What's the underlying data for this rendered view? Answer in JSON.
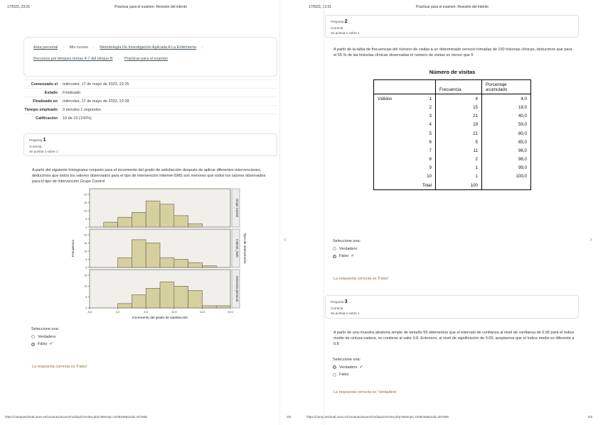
{
  "colors": {
    "check": "#2e9e44",
    "feedback": "#8a6d3b",
    "bar_fill": "#d6d0a0",
    "bar_stroke": "#5f5c45",
    "panel_bg": "#f0efea",
    "strip_bg": "#ececec"
  },
  "icons": {
    "separator": "›",
    "check": "✔",
    "pager_prev": "‹",
    "pager_next": "›"
  },
  "left": {
    "header": {
      "datetime": "17/5/23, 23:31",
      "title": "Practicar para el examen: Revisión del intento"
    },
    "breadcrumb": [
      {
        "label": "Área personal",
        "link": true
      },
      {
        "label": "Mis cursos",
        "link": false
      },
      {
        "label": "Metodología De Investigación Aplicada A La Enfermería",
        "link": true
      },
      {
        "label": "Recursos por bloques temas 4-7 del bloque B",
        "link": true
      },
      {
        "label": "Practicar para el examen",
        "link": true
      }
    ],
    "summary_rows": [
      {
        "label": "Comenzado el",
        "value": "miércoles, 17 de mayo de 2023, 22:25"
      },
      {
        "label": "Estado",
        "value": "Finalizado"
      },
      {
        "label": "Finalizado en",
        "value": "miércoles, 17 de mayo de 2023, 22:28"
      },
      {
        "label": "Tiempo empleado",
        "value": "3 minutos 1 segundos"
      },
      {
        "label": "Calificación",
        "value": "10 de 10 (100%)"
      }
    ],
    "question1": {
      "label": "Pregunta",
      "number": "1",
      "status": "Correcta",
      "grade": "Se puntúa 1 sobre 1",
      "text": "A partir del siguiente histograma conjunto para el incremento del grado de satisfacción después de aplicar diferentes intervenciones, deducimos que todos los valores observados para el tipo de intervención Internet-SMS son menores que todos los valores observados para el tipo de intervención Grupo Control",
      "prompt": "Seleccione una:",
      "options": [
        {
          "label": "Verdadero",
          "selected": false,
          "correct": false
        },
        {
          "label": "Falso",
          "selected": true,
          "correct": true
        }
      ],
      "feedback": "La respuesta correcta es 'Falso'"
    },
    "footer": {
      "url": "https://campusvirtual.unex.es/zonauex/avuex/mod/quiz/review.php?attempt=1048448&cmid=407555",
      "page_num": "1/6"
    }
  },
  "right": {
    "header": {
      "datetime": "17/5/23, 23:31",
      "title": "Practicar para el examen: Revisión del intento"
    },
    "question2": {
      "label": "Pregunta",
      "number": "2",
      "status": "Correcta",
      "grade": "Se puntúa 1 sobre 1",
      "text": "A partir de la tabla de frecuencias del número de visitas a un determinado servicio tomadas de 100 historias clínicas, deducimos que para el 55 % de las historias clínicas observadas el número de visitas es menor que 5",
      "table": {
        "title": "Número de visitas",
        "headers": [
          "",
          "Frecuencia",
          "Porcentaje acumulado"
        ],
        "group_label": "Válidos",
        "rows": [
          [
            "1",
            "4",
            "4,0"
          ],
          [
            "2",
            "15",
            "19,0"
          ],
          [
            "3",
            "21",
            "40,0"
          ],
          [
            "4",
            "19",
            "59,0"
          ],
          [
            "5",
            "21",
            "80,0"
          ],
          [
            "6",
            "5",
            "85,0"
          ],
          [
            "7",
            "11",
            "96,0"
          ],
          [
            "8",
            "2",
            "98,0"
          ],
          [
            "9",
            "1",
            "99,0"
          ],
          [
            "10",
            "1",
            "100,0"
          ],
          [
            "Total",
            "100",
            ""
          ]
        ]
      },
      "prompt": "Seleccione una:",
      "options": [
        {
          "label": "Verdadero",
          "selected": false,
          "correct": false
        },
        {
          "label": "Falso",
          "selected": true,
          "correct": true
        }
      ],
      "feedback": "La respuesta correcta es 'Falso'"
    },
    "question3": {
      "label": "Pregunta",
      "number": "3",
      "status": "Correcta",
      "grade": "Se puntúa 1 sobre 1",
      "text": "A partir de una muestra aleatoria simple de tamaño 55 obtenemos que el intervalo de confianza al nivel de confianza de 0.95 para el índice medio de cintura-cadera, no contiene al valor 0.8. Entonces, al nivel de significación de 0.05, aceptamos que el índice medio es diferente a 0.8",
      "prompt": "Seleccione una:",
      "options": [
        {
          "label": "Verdadero",
          "selected": true,
          "correct": true
        },
        {
          "label": "Falso",
          "selected": false,
          "correct": false
        }
      ],
      "feedback": "La respuesta correcta es 'Verdadero'"
    },
    "footer": {
      "url": "https://campusvirtual.unex.es/zonauex/avuex/mod/quiz/review.php?attempt=1048448&cmid=407555",
      "page_num": "2/6"
    }
  },
  "chart_data": {
    "type": "bar",
    "title": "",
    "xlabel": "Incremento del grado de satisfacción",
    "ylabel": "Frecuencia",
    "panel_axis_label": "Tipo de intervención",
    "x_ticks": [
      "-5,0",
      "0,0",
      "5,0",
      "10,0",
      "15,0",
      "20,0"
    ],
    "bins": 10,
    "legend_position": "none",
    "panels": [
      {
        "name": "Grupo Control",
        "values": [
          0,
          3,
          6,
          9,
          16,
          14,
          7,
          2,
          0,
          0
        ],
        "ymax": 20,
        "y_ticks": [
          0,
          5,
          10,
          15,
          20
        ]
      },
      {
        "name": "Internet_SMS",
        "values": [
          0,
          0,
          6,
          17,
          15,
          6,
          5,
          3,
          1,
          0
        ],
        "ymax": 20,
        "y_ticks": [
          0,
          5,
          10,
          15,
          20
        ]
      },
      {
        "name": "Entrevista personal",
        "values": [
          0,
          0,
          2,
          6,
          9,
          12,
          10,
          8,
          1,
          1
        ],
        "ymax": 15,
        "y_ticks": [
          0,
          5,
          10,
          15
        ]
      }
    ]
  }
}
